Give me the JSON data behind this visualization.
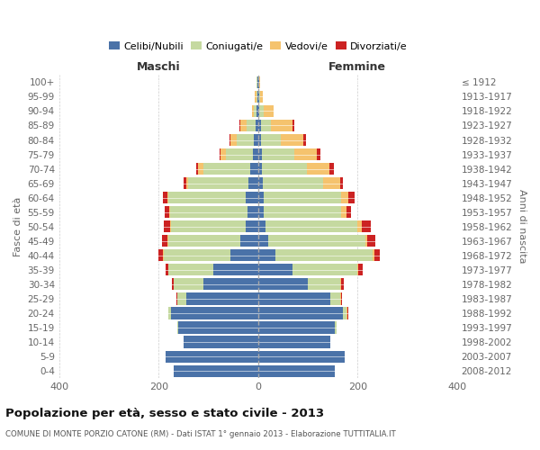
{
  "age_groups": [
    "0-4",
    "5-9",
    "10-14",
    "15-19",
    "20-24",
    "25-29",
    "30-34",
    "35-39",
    "40-44",
    "45-49",
    "50-54",
    "55-59",
    "60-64",
    "65-69",
    "70-74",
    "75-79",
    "80-84",
    "85-89",
    "90-94",
    "95-99",
    "100+"
  ],
  "birth_years": [
    "2008-2012",
    "2003-2007",
    "1998-2002",
    "1993-1997",
    "1988-1992",
    "1983-1987",
    "1978-1982",
    "1973-1977",
    "1968-1972",
    "1963-1967",
    "1958-1962",
    "1953-1957",
    "1948-1952",
    "1943-1947",
    "1938-1942",
    "1933-1937",
    "1928-1932",
    "1923-1927",
    "1918-1922",
    "1913-1917",
    "≤ 1912"
  ],
  "male": {
    "celibi": [
      170,
      185,
      150,
      160,
      175,
      145,
      110,
      90,
      55,
      35,
      25,
      22,
      25,
      20,
      15,
      10,
      8,
      5,
      3,
      2,
      2
    ],
    "coniugati": [
      0,
      0,
      0,
      2,
      5,
      18,
      60,
      90,
      135,
      145,
      150,
      155,
      155,
      120,
      95,
      55,
      35,
      18,
      5,
      2,
      2
    ],
    "vedovi": [
      0,
      0,
      0,
      0,
      0,
      0,
      0,
      0,
      2,
      2,
      2,
      2,
      3,
      5,
      10,
      10,
      12,
      12,
      5,
      2,
      0
    ],
    "divorziati": [
      0,
      0,
      0,
      0,
      0,
      2,
      3,
      5,
      8,
      12,
      12,
      8,
      8,
      5,
      5,
      2,
      2,
      2,
      0,
      0,
      0
    ]
  },
  "female": {
    "nubili": [
      155,
      175,
      145,
      155,
      170,
      145,
      100,
      70,
      35,
      20,
      15,
      12,
      12,
      10,
      8,
      8,
      6,
      5,
      3,
      2,
      2
    ],
    "coniugate": [
      0,
      0,
      0,
      2,
      8,
      20,
      65,
      130,
      195,
      195,
      185,
      155,
      155,
      120,
      90,
      65,
      40,
      20,
      8,
      2,
      0
    ],
    "vedove": [
      0,
      0,
      0,
      0,
      2,
      2,
      2,
      2,
      3,
      5,
      8,
      10,
      15,
      35,
      45,
      45,
      45,
      45,
      20,
      5,
      2
    ],
    "divorziate": [
      0,
      0,
      0,
      0,
      2,
      2,
      5,
      8,
      12,
      15,
      18,
      10,
      12,
      5,
      10,
      8,
      5,
      2,
      0,
      0,
      0
    ]
  },
  "colors": {
    "celibi": "#4a72a8",
    "coniugati": "#c5d9a0",
    "vedovi": "#f5c36e",
    "divorziati": "#cc2222"
  },
  "xlim": 400,
  "title": "Popolazione per età, sesso e stato civile - 2013",
  "subtitle": "COMUNE DI MONTE PORZIO CATONE (RM) - Dati ISTAT 1° gennaio 2013 - Elaborazione TUTTITALIA.IT",
  "ylabel_left": "Fasce di età",
  "ylabel_right": "Anni di nascita",
  "xlabel_left": "Maschi",
  "xlabel_right": "Femmine"
}
